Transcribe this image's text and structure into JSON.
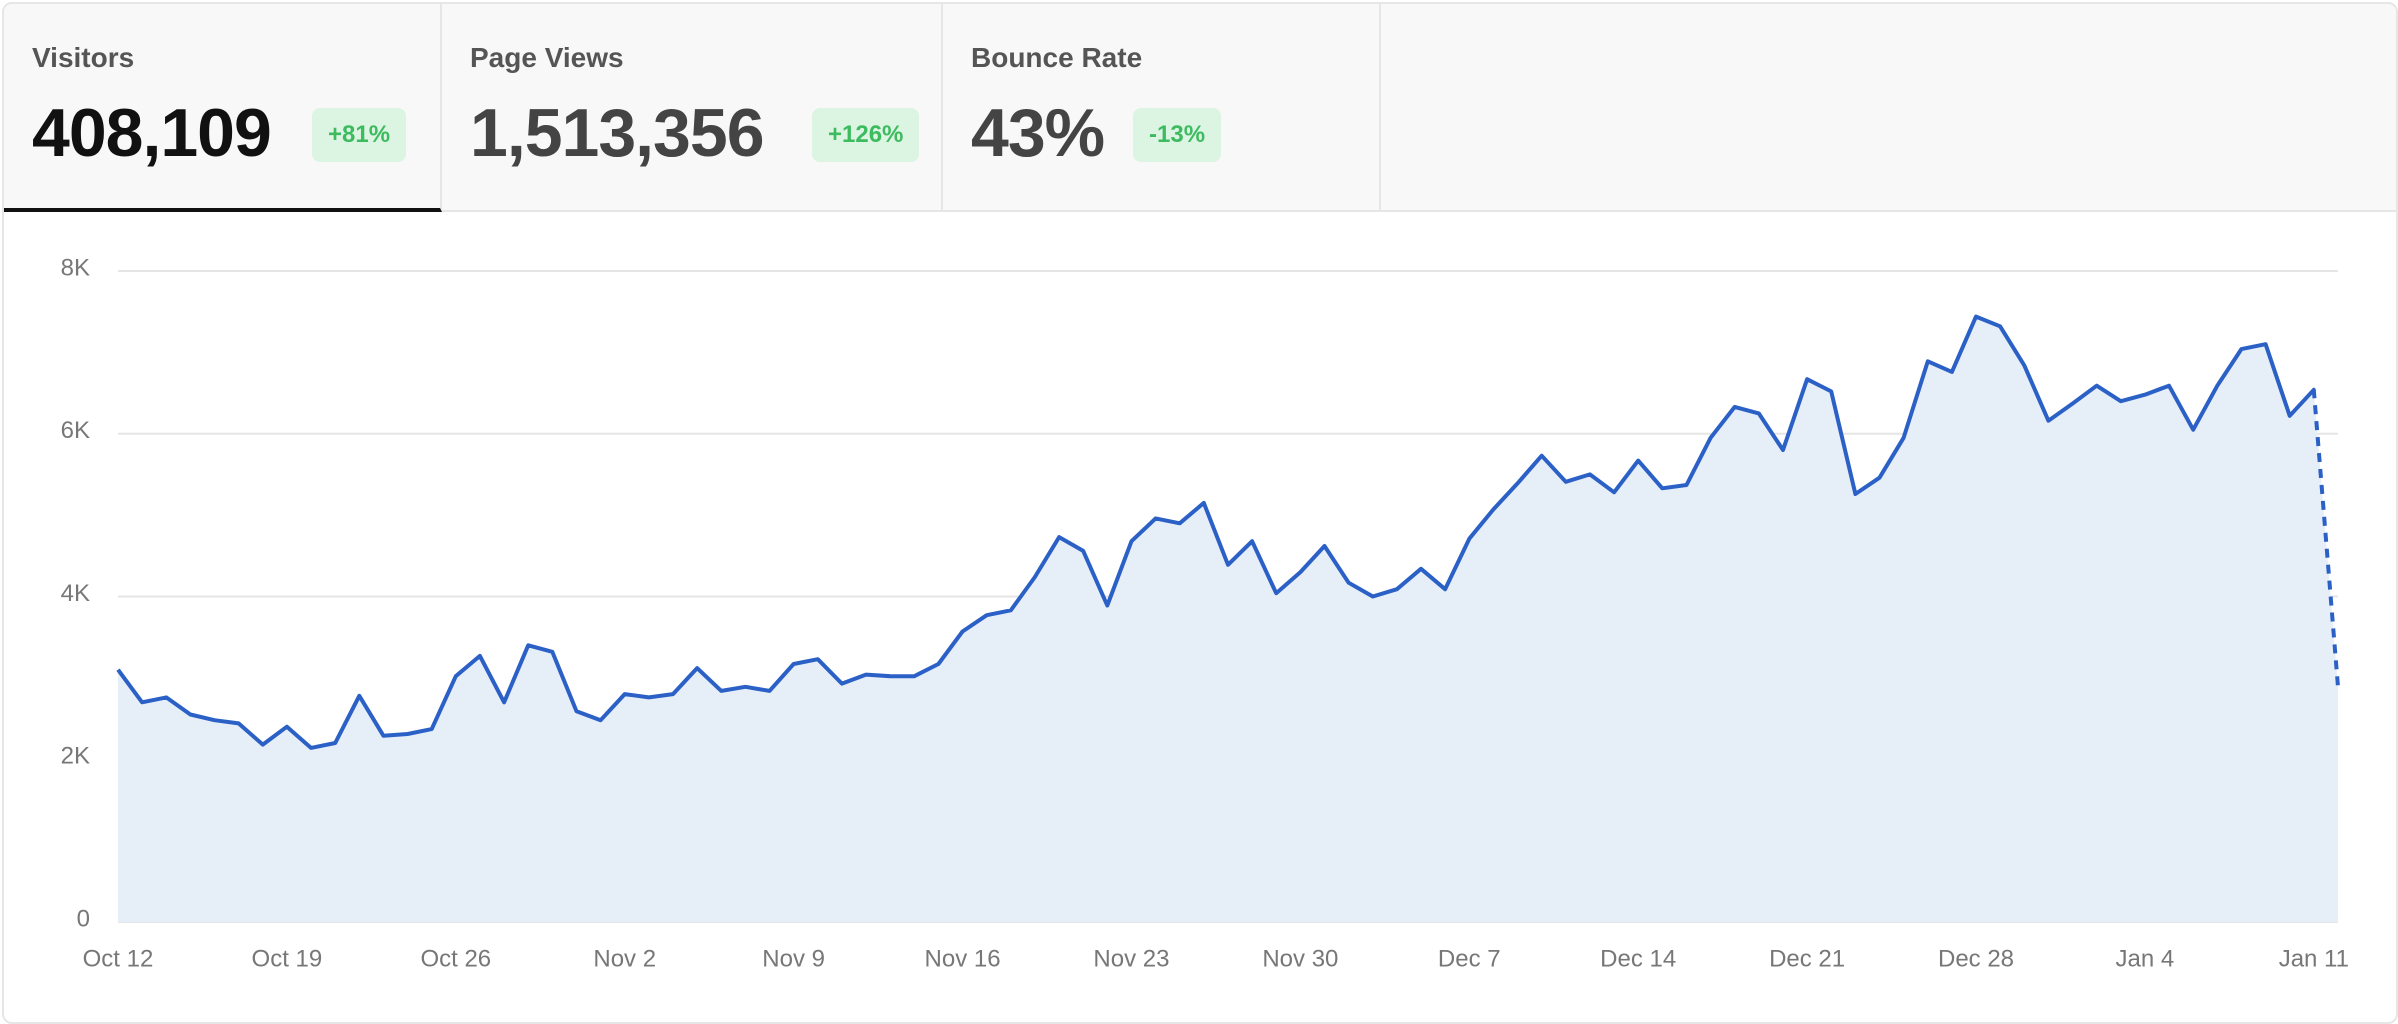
{
  "stats": [
    {
      "label": "Visitors",
      "value": "408,109",
      "change": "+81%",
      "active": true
    },
    {
      "label": "Page Views",
      "value": "1,513,356",
      "change": "+126%",
      "active": false
    },
    {
      "label": "Bounce Rate",
      "value": "43%",
      "change": "-13%",
      "active": false
    }
  ],
  "chart_data": {
    "type": "line",
    "categories": [
      "Oct 12",
      null,
      null,
      null,
      null,
      null,
      null,
      "Oct 19",
      null,
      null,
      null,
      null,
      null,
      null,
      "Oct 26",
      null,
      null,
      null,
      null,
      null,
      null,
      "Nov 2",
      null,
      null,
      null,
      null,
      null,
      null,
      "Nov 9",
      null,
      null,
      null,
      null,
      null,
      null,
      "Nov 16",
      null,
      null,
      null,
      null,
      null,
      null,
      "Nov 23",
      null,
      null,
      null,
      null,
      null,
      null,
      "Nov 30",
      null,
      null,
      null,
      null,
      null,
      null,
      "Dec 7",
      null,
      null,
      null,
      null,
      null,
      null,
      "Dec 14",
      null,
      null,
      null,
      null,
      null,
      null,
      "Dec 21",
      null,
      null,
      null,
      null,
      null,
      null,
      "Dec 28",
      null,
      null,
      null,
      null,
      null,
      null,
      "Jan 4",
      null,
      null,
      null,
      null,
      null,
      null,
      "Jan 11",
      null
    ],
    "series": [
      {
        "name": "Visitors",
        "color": "#2b60c6",
        "fill": "#e6eef8",
        "values": [
          3100,
          2700,
          2760,
          2550,
          2480,
          2440,
          2180,
          2400,
          2140,
          2200,
          2780,
          2290,
          2310,
          2370,
          3020,
          3270,
          2700,
          3400,
          3320,
          2590,
          2480,
          2800,
          2760,
          2800,
          3120,
          2840,
          2890,
          2840,
          3170,
          3230,
          2930,
          3040,
          3020,
          3020,
          3170,
          3570,
          3770,
          3830,
          4240,
          4730,
          4560,
          3890,
          4680,
          4960,
          4900,
          5150,
          4390,
          4680,
          4040,
          4300,
          4620,
          4170,
          4000,
          4090,
          4340,
          4090,
          4710,
          5070,
          5390,
          5730,
          5410,
          5500,
          5280,
          5670,
          5330,
          5370,
          5950,
          6330,
          6250,
          5800,
          6670,
          6520,
          5260,
          5460,
          5950,
          6890,
          6760,
          7440,
          7320,
          6840,
          6160,
          6370,
          6590,
          6400,
          6480,
          6590,
          6050,
          6590,
          7040,
          7100,
          6220,
          6540,
          2890
        ]
      }
    ],
    "last_segment_dashed": true,
    "ylim": [
      0,
      8000
    ],
    "yticks": [
      0,
      {
        "value": 2000,
        "label": "2K"
      },
      {
        "value": 4000,
        "label": "4K"
      },
      {
        "value": 6000,
        "label": "6K"
      },
      {
        "value": 8000,
        "label": "8K"
      }
    ],
    "grid": true
  }
}
